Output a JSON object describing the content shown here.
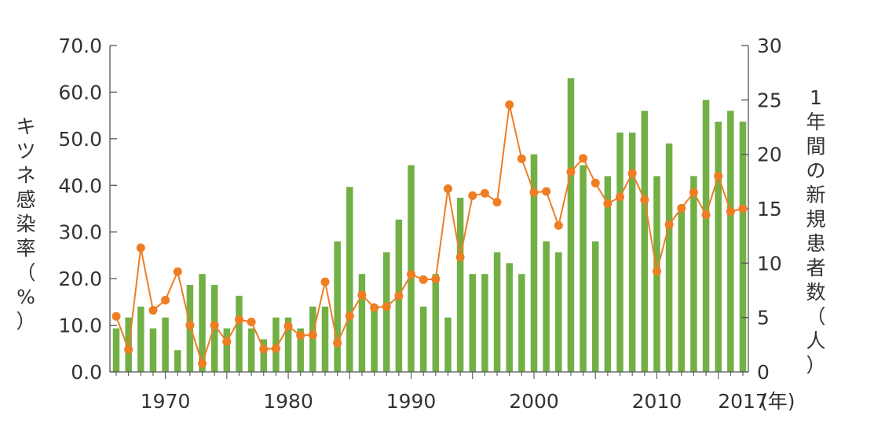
{
  "chart_data": {
    "type": "bar",
    "x_unit": "(年)",
    "x_tick_labels": [
      "1970",
      "1980",
      "1990",
      "2000",
      "2010",
      "2017"
    ],
    "left_axis": {
      "label": "キツネ感染率（%）",
      "ylim": [
        0,
        70
      ],
      "ticks": [
        "0.0",
        "10.0",
        "20.0",
        "30.0",
        "40.0",
        "50.0",
        "60.0",
        "70.0"
      ]
    },
    "right_axis": {
      "label": "1年間の新規患者数（人）",
      "ylim": [
        0,
        30
      ],
      "ticks": [
        "0",
        "5",
        "10",
        "15",
        "20",
        "25",
        "30"
      ]
    },
    "x": [
      1966,
      1967,
      1968,
      1969,
      1970,
      1971,
      1972,
      1973,
      1974,
      1975,
      1976,
      1977,
      1978,
      1979,
      1980,
      1981,
      1982,
      1983,
      1984,
      1985,
      1986,
      1987,
      1988,
      1989,
      1990,
      1991,
      1992,
      1993,
      1994,
      1995,
      1996,
      1997,
      1998,
      1999,
      2000,
      2001,
      2002,
      2003,
      2004,
      2005,
      2006,
      2007,
      2008,
      2009,
      2010,
      2011,
      2012,
      2013,
      2014,
      2015,
      2016,
      2017
    ],
    "series": [
      {
        "type": "bar",
        "axis": "right",
        "color": "#72b045",
        "values": [
          4,
          5,
          6,
          4,
          5,
          2,
          8,
          9,
          8,
          4,
          7,
          4,
          3,
          5,
          5,
          4,
          6,
          6,
          12,
          17,
          9,
          6,
          11,
          14,
          19,
          6,
          9,
          5,
          16,
          9,
          9,
          11,
          10,
          9,
          20,
          12,
          11,
          27,
          19,
          12,
          18,
          22,
          22,
          24,
          18,
          21,
          15,
          18,
          25,
          23,
          24,
          23
        ]
      },
      {
        "type": "line",
        "axis": "left",
        "color": "#ee7d23",
        "values": [
          11.9,
          4.8,
          26.6,
          13.2,
          15.4,
          21.5,
          10.0,
          1.8,
          10.0,
          6.5,
          11.2,
          10.7,
          4.9,
          5.0,
          9.8,
          7.8,
          7.9,
          19.3,
          6.2,
          12.0,
          16.5,
          13.8,
          14.0,
          16.3,
          20.9,
          19.8,
          19.9,
          39.3,
          24.6,
          37.8,
          38.3,
          36.4,
          57.3,
          45.7,
          38.5,
          38.7,
          31.4,
          42.9,
          45.8,
          40.5,
          36.1,
          37.5,
          42.6,
          36.9,
          21.6,
          31.6,
          35.1,
          38.5,
          33.7,
          42.0,
          34.4,
          35.0
        ]
      }
    ]
  }
}
